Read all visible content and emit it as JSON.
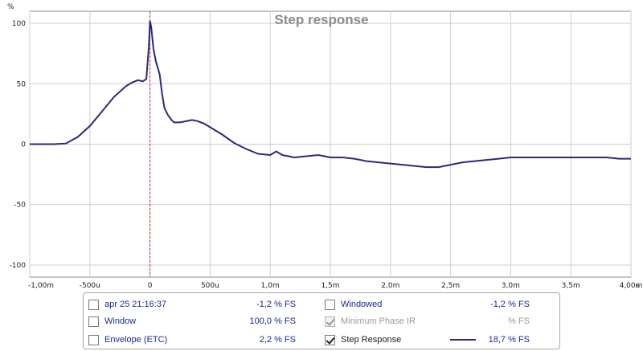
{
  "chart_data": {
    "type": "line",
    "title": "Step response",
    "ylabel": "%",
    "xlabel": "",
    "x_unit_label": "s",
    "xlim": [
      -0.001,
      0.004
    ],
    "ylim": [
      -110,
      110
    ],
    "grid": true,
    "x_ticks": [
      {
        "value": -0.001,
        "label": "-1,00m"
      },
      {
        "value": -0.0005,
        "label": "-500u"
      },
      {
        "value": 0,
        "label": "0"
      },
      {
        "value": 0.0005,
        "label": "500u"
      },
      {
        "value": 0.001,
        "label": "1,0m"
      },
      {
        "value": 0.0015,
        "label": "1,5m"
      },
      {
        "value": 0.002,
        "label": "2,0m"
      },
      {
        "value": 0.0025,
        "label": "2,5m"
      },
      {
        "value": 0.003,
        "label": "3,0m"
      },
      {
        "value": 0.0035,
        "label": "3,5m"
      },
      {
        "value": 0.004,
        "label": "4,00m"
      }
    ],
    "y_ticks": [
      {
        "value": 100,
        "label": "100"
      },
      {
        "value": 50,
        "label": "50"
      },
      {
        "value": 0,
        "label": "0"
      },
      {
        "value": -50,
        "label": "-50"
      },
      {
        "value": -100,
        "label": "-100"
      }
    ],
    "marker_x": 0,
    "series": [
      {
        "name": "Step Response",
        "color": "#2a2a7a",
        "x": [
          -0.001,
          -0.0008,
          -0.0007,
          -0.0006,
          -0.0005,
          -0.0004,
          -0.0003,
          -0.0002,
          -0.00015,
          -0.0001,
          -6e-05,
          -3e-05,
          -1e-05,
          0,
          1e-05,
          3e-05,
          5e-05,
          8e-05,
          0.0001,
          0.00012,
          0.00015,
          0.00018,
          0.0002,
          0.00025,
          0.0003,
          0.00035,
          0.0004,
          0.00045,
          0.0005,
          0.0006,
          0.0007,
          0.0008,
          0.0009,
          0.001,
          0.00105,
          0.0011,
          0.0012,
          0.0013,
          0.0014,
          0.0015,
          0.0016,
          0.0017,
          0.0018,
          0.0019,
          0.002,
          0.0021,
          0.0022,
          0.0023,
          0.0024,
          0.0025,
          0.0026,
          0.0027,
          0.0028,
          0.0029,
          0.003,
          0.0031,
          0.0032,
          0.0033,
          0.0034,
          0.0035,
          0.0036,
          0.0037,
          0.0038,
          0.0039,
          0.004
        ],
        "y": [
          0,
          0,
          0.5,
          6,
          15,
          27,
          39,
          48,
          51,
          53,
          52,
          54,
          80,
          102,
          97,
          78,
          68,
          58,
          42,
          30,
          24,
          20,
          18,
          18,
          19,
          20,
          19,
          17,
          14,
          8,
          1,
          -4,
          -8,
          -9,
          -6,
          -9,
          -11,
          -10,
          -9,
          -11,
          -11,
          -12,
          -14,
          -15,
          -16,
          -17,
          -18,
          -19,
          -19,
          -17,
          -15,
          -14,
          -13,
          -12,
          -11,
          -11,
          -11,
          -11,
          -11,
          -11,
          -11,
          -11,
          -11,
          -12,
          -12
        ]
      }
    ]
  },
  "legend": {
    "items": [
      {
        "name": "apr 25 21:16:37",
        "value": "-1,2 % FS",
        "checked": false,
        "disabled": false
      },
      {
        "name": "Window",
        "value": "100,0 % FS",
        "checked": false,
        "disabled": false
      },
      {
        "name": "Envelope (ETC)",
        "value": "2,2 % FS",
        "checked": false,
        "disabled": false
      },
      {
        "name": "Windowed",
        "value": "-1,2 % FS",
        "checked": false,
        "disabled": false
      },
      {
        "name": "Minimum Phase IR",
        "value": "% FS",
        "checked": true,
        "disabled": true
      },
      {
        "name": "Step Response",
        "value": "18,7 % FS",
        "checked": true,
        "disabled": false
      }
    ]
  }
}
